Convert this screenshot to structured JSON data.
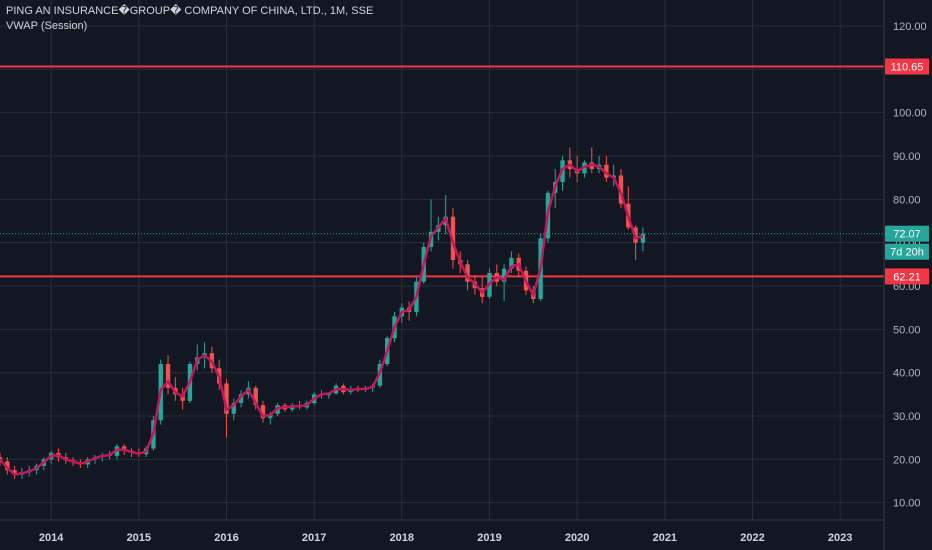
{
  "legend": {
    "title": "PING AN INSURANCE�GROUP� COMPANY OF CHINA, LTD., 1M, SSE",
    "indicator": "VWAP (Session)"
  },
  "colors": {
    "background": "#131722",
    "grid": "#2a2e39",
    "up": "#26a69a",
    "down": "#ef5350",
    "vwap": "#c2185b",
    "hline": "#f23645",
    "last_price": "#26a69a"
  },
  "chart_data": {
    "type": "candlestick",
    "symbol": "PING AN INSURANCE�GROUP� COMPANY OF CHINA, LTD.",
    "interval": "1M",
    "exchange": "SSE",
    "ylim": [
      6,
      126
    ],
    "xlim": [
      "2013-06",
      "2023-07"
    ],
    "x_ticks": [
      "2014",
      "2015",
      "2016",
      "2017",
      "2018",
      "2019",
      "2020",
      "2021",
      "2022",
      "2023"
    ],
    "y_ticks": [
      "10.00",
      "20.00",
      "30.00",
      "40.00",
      "50.00",
      "60.00",
      "70.00",
      "80.00",
      "90.00",
      "100.00",
      "110.00",
      "120.00"
    ],
    "horizontal_lines": [
      {
        "value": 110.65,
        "label": "110.65"
      },
      {
        "value": 62.21,
        "label": "62.21"
      }
    ],
    "last_price": {
      "value": 72.07,
      "label": "72.07",
      "countdown": "7d 20h"
    },
    "candles": [
      [
        20.5,
        21.5,
        18.5,
        19.5
      ],
      [
        19.5,
        20.5,
        16.5,
        17.5
      ],
      [
        17.5,
        18.5,
        15.5,
        16.5
      ],
      [
        16.5,
        18.0,
        15.5,
        17.0
      ],
      [
        17.0,
        18.5,
        16.0,
        17.5
      ],
      [
        17.5,
        19.0,
        16.5,
        18.5
      ],
      [
        18.5,
        20.5,
        17.5,
        20.0
      ],
      [
        20.0,
        22.0,
        19.0,
        21.5
      ],
      [
        21.5,
        22.5,
        19.5,
        20.5
      ],
      [
        20.5,
        21.5,
        19.0,
        19.8
      ],
      [
        19.8,
        20.5,
        18.5,
        19.3
      ],
      [
        19.3,
        20.0,
        18.0,
        18.8
      ],
      [
        18.8,
        20.5,
        18.0,
        20.0
      ],
      [
        20.0,
        21.0,
        19.0,
        20.5
      ],
      [
        20.5,
        21.5,
        19.5,
        21.0
      ],
      [
        21.0,
        22.0,
        20.0,
        20.8
      ],
      [
        20.8,
        23.5,
        20.0,
        23.0
      ],
      [
        23.0,
        23.5,
        21.0,
        22.0
      ],
      [
        22.0,
        22.5,
        20.5,
        21.5
      ],
      [
        21.5,
        22.5,
        20.5,
        21.2
      ],
      [
        21.2,
        23.0,
        20.5,
        22.5
      ],
      [
        22.5,
        30.0,
        22.0,
        29.0
      ],
      [
        29.0,
        43.0,
        28.0,
        42.0
      ],
      [
        42.0,
        44.0,
        35.0,
        36.5
      ],
      [
        36.5,
        39.0,
        33.5,
        35.0
      ],
      [
        35.0,
        36.5,
        31.5,
        33.5
      ],
      [
        33.5,
        42.5,
        33.0,
        42.0
      ],
      [
        42.0,
        46.5,
        40.5,
        43.5
      ],
      [
        43.5,
        47.0,
        41.0,
        44.5
      ],
      [
        44.5,
        46.0,
        40.0,
        41.0
      ],
      [
        41.0,
        43.0,
        36.0,
        37.5
      ],
      [
        37.5,
        38.5,
        25.0,
        30.5
      ],
      [
        30.5,
        34.0,
        29.0,
        33.0
      ],
      [
        33.0,
        36.0,
        32.0,
        35.0
      ],
      [
        35.0,
        38.0,
        34.0,
        36.5
      ],
      [
        36.5,
        37.0,
        31.5,
        32.5
      ],
      [
        32.5,
        33.5,
        28.5,
        29.5
      ],
      [
        29.5,
        31.0,
        28.0,
        30.5
      ],
      [
        30.5,
        33.0,
        30.0,
        32.5
      ],
      [
        32.5,
        33.0,
        31.0,
        31.5
      ],
      [
        31.5,
        33.0,
        31.0,
        32.5
      ],
      [
        32.5,
        33.5,
        31.5,
        32.0
      ],
      [
        32.0,
        33.5,
        31.5,
        33.0
      ],
      [
        33.0,
        35.5,
        32.5,
        35.0
      ],
      [
        35.0,
        36.0,
        34.0,
        34.8
      ],
      [
        34.8,
        35.5,
        34.0,
        35.2
      ],
      [
        35.2,
        37.5,
        35.0,
        37.0
      ],
      [
        37.0,
        37.5,
        35.0,
        35.5
      ],
      [
        35.5,
        37.0,
        35.0,
        36.2
      ],
      [
        36.2,
        37.0,
        35.5,
        36.0
      ],
      [
        36.0,
        37.0,
        35.5,
        36.5
      ],
      [
        36.5,
        37.5,
        35.5,
        37.0
      ],
      [
        37.0,
        43.0,
        36.5,
        42.0
      ],
      [
        42.0,
        48.5,
        41.5,
        48.0
      ],
      [
        48.0,
        54.0,
        47.0,
        53.0
      ],
      [
        53.0,
        56.0,
        51.5,
        55.0
      ],
      [
        55.0,
        56.5,
        52.0,
        54.0
      ],
      [
        54.0,
        62.0,
        53.0,
        61.0
      ],
      [
        61.0,
        70.0,
        60.5,
        69.0
      ],
      [
        69.0,
        80.0,
        68.0,
        72.5
      ],
      [
        72.5,
        76.0,
        70.5,
        74.0
      ],
      [
        74.0,
        81.0,
        72.0,
        76.0
      ],
      [
        76.0,
        78.0,
        64.0,
        66.0
      ],
      [
        66.0,
        68.0,
        63.0,
        65.0
      ],
      [
        65.0,
        66.0,
        59.0,
        61.0
      ],
      [
        61.0,
        62.5,
        58.0,
        59.5
      ],
      [
        59.5,
        62.0,
        56.0,
        57.5
      ],
      [
        57.5,
        64.0,
        57.0,
        63.0
      ],
      [
        63.0,
        65.0,
        60.0,
        61.0
      ],
      [
        61.0,
        65.0,
        56.5,
        64.0
      ],
      [
        64.0,
        68.0,
        63.0,
        66.5
      ],
      [
        66.5,
        67.5,
        62.0,
        63.5
      ],
      [
        63.5,
        64.5,
        58.0,
        59.0
      ],
      [
        59.0,
        60.0,
        56.0,
        57.0
      ],
      [
        57.0,
        72.0,
        56.5,
        71.0
      ],
      [
        71.0,
        82.0,
        70.0,
        81.5
      ],
      [
        81.5,
        87.0,
        78.0,
        84.0
      ],
      [
        84.0,
        90.0,
        82.0,
        89.0
      ],
      [
        89.0,
        92.0,
        85.0,
        87.0
      ],
      [
        87.0,
        90.0,
        84.0,
        86.0
      ],
      [
        86.0,
        89.0,
        85.0,
        88.5
      ],
      [
        88.5,
        92.0,
        86.0,
        87.0
      ],
      [
        87.0,
        90.0,
        86.0,
        88.0
      ],
      [
        88.0,
        90.0,
        84.0,
        85.0
      ],
      [
        85.0,
        88.0,
        83.0,
        85.5
      ],
      [
        85.5,
        87.0,
        78.0,
        79.0
      ],
      [
        79.0,
        83.0,
        73.0,
        73.5
      ],
      [
        73.5,
        74.0,
        66.0,
        70.0
      ],
      [
        70.0,
        73.5,
        68.0,
        72.07
      ]
    ],
    "vwap": [
      20.0,
      18.0,
      16.5,
      16.8,
      17.2,
      18.0,
      19.3,
      20.8,
      20.9,
      20.0,
      19.5,
      19.0,
      19.5,
      20.3,
      20.8,
      21.0,
      22.2,
      22.2,
      21.7,
      21.3,
      21.8,
      26.0,
      36.0,
      38.0,
      35.5,
      34.5,
      38.0,
      43.0,
      44.0,
      42.5,
      39.0,
      31.5,
      32.5,
      34.5,
      36.0,
      33.0,
      30.0,
      30.2,
      31.8,
      32.0,
      32.2,
      32.3,
      32.5,
      34.0,
      35.0,
      35.2,
      36.2,
      36.2,
      36.0,
      36.2,
      36.3,
      36.7,
      40.0,
      45.0,
      50.5,
      54.0,
      54.5,
      57.5,
      65.0,
      71.5,
      73.5,
      75.5,
      70.0,
      65.5,
      62.0,
      60.5,
      58.5,
      60.5,
      62.0,
      61.5,
      64.5,
      65.0,
      61.0,
      58.0,
      64.0,
      77.0,
      83.0,
      87.0,
      88.0,
      86.5,
      87.5,
      88.0,
      87.5,
      86.0,
      85.0,
      81.5,
      76.0,
      71.0,
      71.5
    ]
  }
}
